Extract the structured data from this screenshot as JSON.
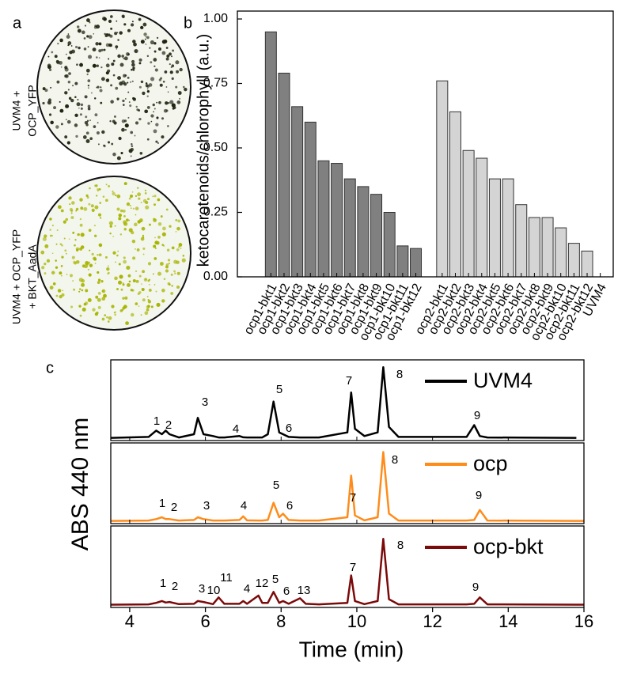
{
  "panel_labels": [
    "a",
    "b",
    "c"
  ],
  "panel_a": {
    "plates": [
      {
        "label_lines": [
          "UVM4 +",
          "OCP_YFP"
        ]
      },
      {
        "label_lines": [
          "UVM4 + OCP_YFP",
          "+ BKT_AadA"
        ]
      }
    ]
  },
  "chart_data": [
    {
      "type": "bar",
      "ylabel": "ketocarotenoids/chlorophyll (a.u.)",
      "categories": [
        "ocp1-bkt1",
        "ocp1-bkt2",
        "ocp1-bkt3",
        "ocp1-bkt4",
        "ocp1-bkt5",
        "ocp1-bkt6",
        "ocp1-bkt7",
        "ocp1-bkt8",
        "ocp1-bkt9",
        "ocp1-bkt10",
        "ocp1-bkt11",
        "ocp1-bkt12",
        null,
        "ocp2-bkt1",
        "ocp2-bkt2",
        "ocp2-bkt3",
        "ocp2-bkt4",
        "ocp2-bkt5",
        "ocp2-bkt6",
        "ocp2-bkt7",
        "ocp2-bkt8",
        "ocp2-bkt9",
        "ocp2-bkt10",
        "ocp2-bkt11",
        "ocp2-bkt12",
        "UVM4"
      ],
      "values": [
        0.95,
        0.79,
        0.66,
        0.6,
        0.45,
        0.44,
        0.38,
        0.35,
        0.32,
        0.25,
        0.12,
        0.11,
        null,
        0.76,
        0.64,
        0.49,
        0.46,
        0.38,
        0.38,
        0.28,
        0.23,
        0.23,
        0.19,
        0.13,
        0.1,
        0
      ],
      "colors": [
        "#808080",
        "#808080",
        "#808080",
        "#808080",
        "#808080",
        "#808080",
        "#808080",
        "#808080",
        "#808080",
        "#808080",
        "#808080",
        "#808080",
        null,
        "#d4d4d4",
        "#d4d4d4",
        "#d4d4d4",
        "#d4d4d4",
        "#d4d4d4",
        "#d4d4d4",
        "#d4d4d4",
        "#d4d4d4",
        "#d4d4d4",
        "#d4d4d4",
        "#d4d4d4",
        "#d4d4d4",
        "#d4d4d4"
      ],
      "ylim": [
        0,
        1.0
      ],
      "yticks": [
        {
          "value": 0,
          "label": "0.00"
        },
        {
          "value": 0.25,
          "label": "0.25"
        },
        {
          "value": 0.5,
          "label": "0.50"
        },
        {
          "value": 0.75,
          "label": "0.75"
        },
        {
          "value": 1.0,
          "label": "1.00"
        }
      ]
    },
    {
      "type": "line",
      "xlabel": "Time (min)",
      "ylabel": "ABS 440 nm",
      "legend": "upper right",
      "x": [
        3.5,
        4.5,
        4.7,
        4.85,
        4.95,
        5.05,
        5.3,
        5.7,
        5.8,
        5.95,
        6.2,
        6.35,
        6.5,
        6.9,
        7.0,
        7.1,
        7.4,
        7.5,
        7.65,
        7.8,
        7.95,
        8.05,
        8.2,
        8.5,
        8.65,
        9.0,
        9.75,
        9.85,
        9.95,
        10.2,
        10.55,
        10.7,
        10.85,
        11.1,
        12.9,
        13.1,
        13.25,
        13.45,
        15.8,
        16
      ],
      "xlim": [
        3.5,
        16
      ],
      "xticks": [
        4,
        6,
        8,
        10,
        12,
        14,
        16
      ],
      "ylim": [
        -0.15,
        4.3
      ],
      "series": [
        {
          "name": "UVM4",
          "color": "#000000",
          "values": [
            0,
            0.05,
            0.4,
            0.2,
            0.4,
            0.2,
            0.02,
            0.2,
            1.1,
            0.2,
            0.1,
            0.02,
            0.02,
            0.1,
            0.03,
            0.02,
            0.02,
            0.02,
            0.2,
            2.0,
            0.3,
            0.2,
            0.05,
            0.02,
            0.02,
            0.02,
            0.3,
            2.5,
            0.5,
            0.1,
            0.3,
            3.9,
            0.6,
            0.05,
            0.05,
            0.7,
            0.1,
            0.02,
            0,
            null
          ],
          "annotations": [
            "1",
            "2",
            "3",
            "4",
            "5",
            "6",
            "7",
            "8",
            "9"
          ]
        },
        {
          "name": "ocp",
          "color": "#ff8c1a",
          "values": [
            0,
            0.02,
            0.1,
            0.2,
            0.1,
            0.1,
            0.02,
            0.05,
            0.2,
            0.1,
            0.02,
            0.02,
            0.02,
            0.05,
            0.25,
            0.03,
            0.02,
            0.02,
            0.05,
            1.0,
            0.2,
            0.4,
            0.05,
            0.02,
            0.02,
            0.02,
            0.2,
            2.5,
            0.3,
            0.03,
            0.2,
            3.8,
            0.4,
            0.02,
            0.02,
            0.05,
            0.6,
            0.02,
            0,
            0
          ],
          "annotations": [
            "1",
            "2",
            "3",
            "4",
            "5",
            "6",
            "7",
            "8",
            "9"
          ]
        },
        {
          "name": "ocp-bkt",
          "color": "#7b0a0a",
          "values": [
            0,
            0.02,
            0.1,
            0.2,
            0.12,
            0.15,
            0.03,
            0.05,
            0.2,
            0.15,
            0.03,
            0.4,
            0.05,
            0.05,
            0.2,
            0.05,
            0.5,
            0.1,
            0.1,
            0.7,
            0.1,
            0.2,
            0.05,
            0.35,
            0.05,
            0.02,
            0.1,
            1.6,
            0.2,
            0.03,
            0.2,
            3.6,
            0.3,
            0.02,
            0.02,
            0.05,
            0.4,
            0.02,
            0,
            0
          ],
          "annotations": [
            "1",
            "2",
            "3",
            "10",
            "11",
            "4",
            "12",
            "5",
            "6",
            "13",
            "7",
            "8",
            "9"
          ]
        }
      ]
    }
  ]
}
